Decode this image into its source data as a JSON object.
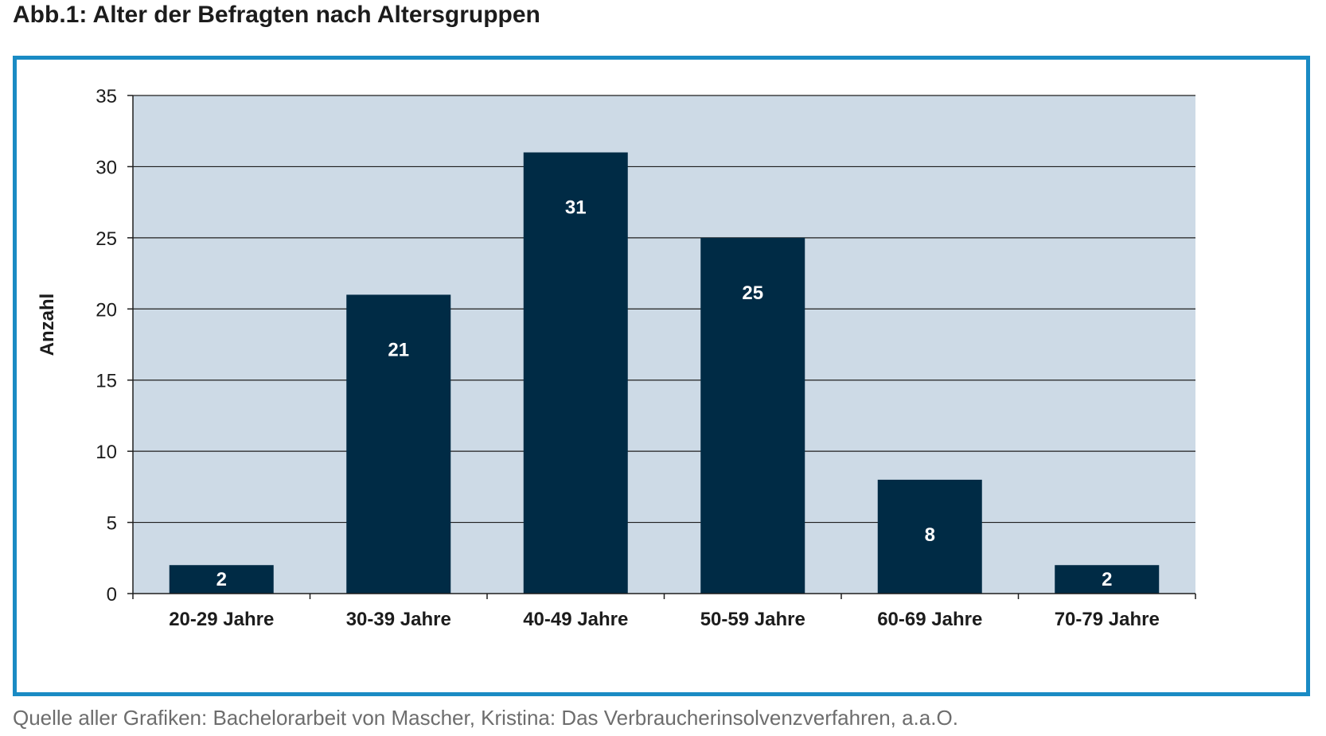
{
  "page": {
    "title": "Abb.1: Alter der Befragten nach Altersgruppen",
    "source": "Quelle aller Grafiken: Bachelorarbeit von Mascher, Kristina: Das Verbraucherinsolvenzverfahren, a.a.O."
  },
  "colors": {
    "frame": "#1a8bc4",
    "plot_background": "#cddae6",
    "bar": "#002b45",
    "bar_label": "#ffffff",
    "gridline": "#1e1e1e"
  },
  "chart_data": {
    "type": "bar",
    "title": "Abb.1: Alter der Befragten nach Altersgruppen",
    "xlabel": "",
    "ylabel": "Anzahl",
    "categories": [
      "20-29 Jahre",
      "30-39 Jahre",
      "40-49 Jahre",
      "50-59 Jahre",
      "60-69 Jahre",
      "70-79 Jahre"
    ],
    "values": [
      2,
      21,
      31,
      25,
      8,
      2
    ],
    "data_labels": [
      "2",
      "21",
      "31",
      "25",
      "8",
      "2"
    ],
    "ylim": [
      0,
      35
    ],
    "yticks": [
      0,
      5,
      10,
      15,
      20,
      25,
      30,
      35
    ],
    "grid": true,
    "legend": "none"
  }
}
